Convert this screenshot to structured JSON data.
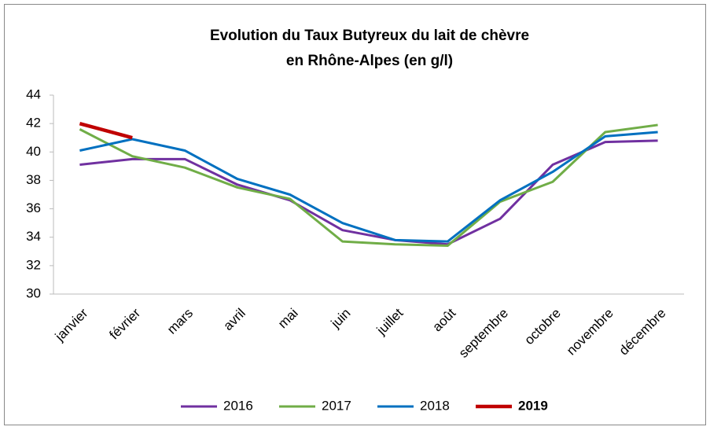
{
  "chart_data": {
    "type": "line",
    "title": [
      "Evolution du Taux Butyreux du lait de chèvre",
      "en Rhône-Alpes (en g/l)"
    ],
    "categories": [
      "janvier",
      "février",
      "mars",
      "avril",
      "mai",
      "juin",
      "juillet",
      "août",
      "septembre",
      "octobre",
      "novembre",
      "décembre"
    ],
    "series": [
      {
        "name": "2016",
        "color": "#7030a0",
        "width": 3,
        "bold": false,
        "values": [
          39.1,
          39.5,
          39.5,
          37.7,
          36.6,
          34.5,
          33.8,
          33.5,
          35.3,
          39.1,
          40.7,
          40.8
        ]
      },
      {
        "name": "2017",
        "color": "#70ad47",
        "width": 3,
        "bold": false,
        "values": [
          41.6,
          39.7,
          38.9,
          37.5,
          36.7,
          33.7,
          33.5,
          33.4,
          36.5,
          37.9,
          41.4,
          41.9
        ]
      },
      {
        "name": "2018",
        "color": "#0070c0",
        "width": 3,
        "bold": false,
        "values": [
          40.1,
          40.9,
          40.1,
          38.1,
          37.0,
          35.0,
          33.8,
          33.7,
          36.6,
          38.6,
          41.1,
          41.4
        ]
      },
      {
        "name": "2019",
        "color": "#c00000",
        "width": 4.5,
        "bold": true,
        "values": [
          42.0,
          41.0,
          null,
          null,
          null,
          null,
          null,
          null,
          null,
          null,
          null,
          null
        ]
      }
    ],
    "ylim": [
      30,
      44
    ],
    "yticks": [
      30,
      32,
      34,
      36,
      38,
      40,
      42,
      44
    ],
    "grid": false,
    "legend": "bottom"
  }
}
